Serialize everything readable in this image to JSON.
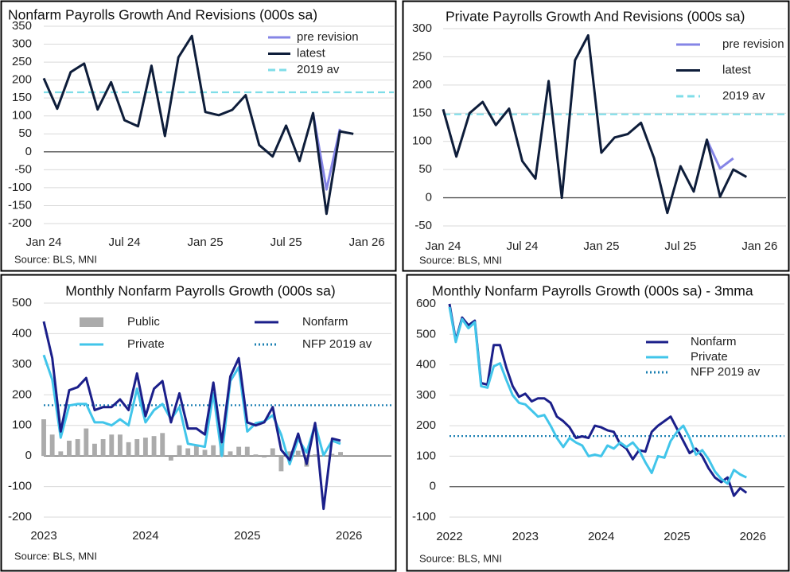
{
  "chart_data": [
    {
      "type": "line",
      "title": "Nonfarm Payrolls Growth And Revisions (000s sa)",
      "source": "Source: BLS, MNI",
      "x": [
        "2024-01",
        "2024-02",
        "2024-03",
        "2024-04",
        "2024-05",
        "2024-06",
        "2024-07",
        "2024-08",
        "2024-09",
        "2024-10",
        "2024-11",
        "2024-12",
        "2025-01",
        "2025-02",
        "2025-03",
        "2025-04",
        "2025-05",
        "2025-06",
        "2025-07",
        "2025-08",
        "2025-09",
        "2025-10",
        "2025-11",
        "2025-12"
      ],
      "series": [
        {
          "name": "pre revision",
          "color": "#8585e6",
          "values": [
            null,
            null,
            null,
            null,
            null,
            null,
            null,
            null,
            null,
            null,
            null,
            null,
            null,
            null,
            null,
            null,
            null,
            null,
            null,
            null,
            108,
            -105,
            64,
            null
          ]
        },
        {
          "name": "latest",
          "color": "#0e1d3a",
          "values": [
            205,
            120,
            222,
            246,
            118,
            194,
            88,
            71,
            240,
            44,
            263,
            323,
            111,
            102,
            117,
            158,
            19,
            -13,
            73,
            -26,
            108,
            -173,
            57,
            50
          ]
        }
      ],
      "reference_lines": [
        {
          "name": "2019 av",
          "value": 166,
          "color": "#7fdde8",
          "style": "dashed"
        }
      ],
      "xlim": [
        "2024-01",
        "2026-03"
      ],
      "xticks": [
        {
          "value": "2024-01",
          "label": "Jan 24"
        },
        {
          "value": "2024-07",
          "label": "Jul 24"
        },
        {
          "value": "2025-01",
          "label": "Jan 25"
        },
        {
          "value": "2025-07",
          "label": "Jul 25"
        },
        {
          "value": "2026-01",
          "label": "Jan 26"
        }
      ],
      "ylim": [
        -200,
        350
      ],
      "yticks": [
        -200,
        -150,
        -100,
        -50,
        0,
        50,
        100,
        150,
        200,
        250,
        300,
        350
      ],
      "grid": true,
      "legend": "upper right"
    },
    {
      "type": "line",
      "title": "Private Payrolls Growth And Revisions (000s sa)",
      "source": "Source: BLS, MNI",
      "x": [
        "2024-01",
        "2024-02",
        "2024-03",
        "2024-04",
        "2024-05",
        "2024-06",
        "2024-07",
        "2024-08",
        "2024-09",
        "2024-10",
        "2024-11",
        "2024-12",
        "2025-01",
        "2025-02",
        "2025-03",
        "2025-04",
        "2025-05",
        "2025-06",
        "2025-07",
        "2025-08",
        "2025-09",
        "2025-10",
        "2025-11",
        "2025-12"
      ],
      "series": [
        {
          "name": "pre revision",
          "color": "#8585e6",
          "values": [
            null,
            null,
            null,
            null,
            null,
            null,
            null,
            null,
            null,
            null,
            null,
            null,
            null,
            null,
            null,
            null,
            null,
            null,
            null,
            null,
            103,
            52,
            70,
            null
          ]
        },
        {
          "name": "latest",
          "color": "#0e1d3a",
          "values": [
            157,
            73,
            150,
            170,
            129,
            158,
            65,
            34,
            207,
            0,
            244,
            288,
            80,
            107,
            113,
            133,
            70,
            -27,
            56,
            11,
            103,
            2,
            50,
            37
          ]
        }
      ],
      "reference_lines": [
        {
          "name": "2019 av",
          "value": 148,
          "color": "#7fdde8",
          "style": "dashed"
        }
      ],
      "xlim": [
        "2024-01",
        "2026-03"
      ],
      "xticks": [
        {
          "value": "2024-01",
          "label": "Jan 24"
        },
        {
          "value": "2024-07",
          "label": "Jul 24"
        },
        {
          "value": "2025-01",
          "label": "Jan 25"
        },
        {
          "value": "2025-07",
          "label": "Jul 25"
        },
        {
          "value": "2026-01",
          "label": "Jan 26"
        }
      ],
      "ylim": [
        -50,
        300
      ],
      "yticks": [
        -50,
        0,
        50,
        100,
        150,
        200,
        250,
        300
      ],
      "grid": true,
      "legend": "right"
    },
    {
      "type": "line",
      "title": "Monthly Nonfarm Payrolls Growth (000s sa)",
      "source": "Source: BLS, MNI",
      "x": [
        "2023-01",
        "2023-02",
        "2023-03",
        "2023-04",
        "2023-05",
        "2023-06",
        "2023-07",
        "2023-08",
        "2023-09",
        "2023-10",
        "2023-11",
        "2023-12",
        "2024-01",
        "2024-02",
        "2024-03",
        "2024-04",
        "2024-05",
        "2024-06",
        "2024-07",
        "2024-08",
        "2024-09",
        "2024-10",
        "2024-11",
        "2024-12",
        "2025-01",
        "2025-02",
        "2025-03",
        "2025-04",
        "2025-05",
        "2025-06",
        "2025-07",
        "2025-08",
        "2025-09",
        "2025-10",
        "2025-11",
        "2025-12"
      ],
      "series": [
        {
          "name": "Public",
          "color": "#ababab",
          "kind": "bar",
          "values": [
            120,
            70,
            15,
            50,
            55,
            90,
            40,
            55,
            70,
            70,
            45,
            55,
            60,
            65,
            75,
            -15,
            35,
            25,
            35,
            20,
            35,
            45,
            15,
            30,
            30,
            5,
            -5,
            25,
            -50,
            15,
            17,
            -35,
            5,
            0,
            7,
            13
          ]
        },
        {
          "name": "Private",
          "color": "#41c5ea",
          "values": [
            330,
            250,
            60,
            165,
            170,
            170,
            110,
            110,
            100,
            120,
            100,
            220,
            110,
            150,
            170,
            120,
            160,
            40,
            35,
            30,
            205,
            0,
            245,
            290,
            80,
            107,
            113,
            133,
            70,
            -27,
            56,
            11,
            103,
            2,
            50,
            40
          ]
        },
        {
          "name": "Nonfarm",
          "color": "#1b1f8a",
          "values": [
            440,
            320,
            80,
            215,
            225,
            255,
            150,
            160,
            160,
            185,
            150,
            270,
            130,
            220,
            245,
            110,
            205,
            90,
            90,
            70,
            240,
            45,
            260,
            320,
            110,
            100,
            110,
            160,
            20,
            -13,
            73,
            -26,
            108,
            -173,
            57,
            50
          ]
        }
      ],
      "reference_lines": [
        {
          "name": "NFP 2019 av",
          "value": 166,
          "color": "#1a7fb2",
          "style": "dotted"
        }
      ],
      "xlim": [
        "2023-01",
        "2026-06"
      ],
      "xticks": [
        {
          "value": "2023-01",
          "label": "2023"
        },
        {
          "value": "2024-01",
          "label": "2024"
        },
        {
          "value": "2025-01",
          "label": "2025"
        },
        {
          "value": "2026-01",
          "label": "2026"
        }
      ],
      "ylim": [
        -200,
        500
      ],
      "yticks": [
        -200,
        -100,
        0,
        100,
        200,
        300,
        400,
        500
      ],
      "grid": true,
      "legend": "top"
    },
    {
      "type": "line",
      "title": "Monthly Nonfarm Payrolls Growth (000s sa) - 3mma",
      "source": "Source: BLS, MNI",
      "x": [
        "2022-01",
        "2022-02",
        "2022-03",
        "2022-04",
        "2022-05",
        "2022-06",
        "2022-07",
        "2022-08",
        "2022-09",
        "2022-10",
        "2022-11",
        "2022-12",
        "2023-01",
        "2023-02",
        "2023-03",
        "2023-04",
        "2023-05",
        "2023-06",
        "2023-07",
        "2023-08",
        "2023-09",
        "2023-10",
        "2023-11",
        "2023-12",
        "2024-01",
        "2024-02",
        "2024-03",
        "2024-04",
        "2024-05",
        "2024-06",
        "2024-07",
        "2024-08",
        "2024-09",
        "2024-10",
        "2024-11",
        "2024-12",
        "2025-01",
        "2025-02",
        "2025-03",
        "2025-04",
        "2025-05",
        "2025-06",
        "2025-07",
        "2025-08",
        "2025-09",
        "2025-10",
        "2025-11",
        "2025-12"
      ],
      "series": [
        {
          "name": "Nonfarm",
          "color": "#1b1f8a",
          "values": [
            600,
            480,
            555,
            530,
            545,
            340,
            335,
            465,
            465,
            390,
            330,
            295,
            305,
            280,
            290,
            290,
            275,
            230,
            215,
            195,
            160,
            165,
            160,
            200,
            195,
            185,
            180,
            140,
            125,
            90,
            120,
            115,
            180,
            200,
            215,
            230,
            190,
            150,
            110,
            125,
            100,
            60,
            30,
            15,
            30,
            -30,
            -5,
            -20
          ]
        },
        {
          "name": "Private",
          "color": "#41c5ea",
          "values": [
            590,
            475,
            550,
            520,
            540,
            330,
            325,
            395,
            405,
            350,
            300,
            275,
            270,
            250,
            230,
            235,
            200,
            160,
            130,
            160,
            145,
            135,
            100,
            105,
            100,
            135,
            125,
            145,
            130,
            145,
            120,
            80,
            45,
            100,
            95,
            150,
            180,
            200,
            160,
            105,
            120,
            90,
            50,
            25,
            10,
            55,
            40,
            30
          ]
        }
      ],
      "reference_lines": [
        {
          "name": "NFP 2019 av",
          "value": 166,
          "color": "#1a7fb2",
          "style": "dotted"
        }
      ],
      "xlim": [
        "2022-01",
        "2026-06"
      ],
      "xticks": [
        {
          "value": "2022-01",
          "label": "2022"
        },
        {
          "value": "2023-01",
          "label": "2023"
        },
        {
          "value": "2024-01",
          "label": "2024"
        },
        {
          "value": "2025-01",
          "label": "2025"
        },
        {
          "value": "2026-01",
          "label": "2026"
        }
      ],
      "ylim": [
        -100,
        600
      ],
      "yticks": [
        -100,
        0,
        100,
        200,
        300,
        400,
        500,
        600
      ],
      "grid": true,
      "legend": "right"
    }
  ]
}
